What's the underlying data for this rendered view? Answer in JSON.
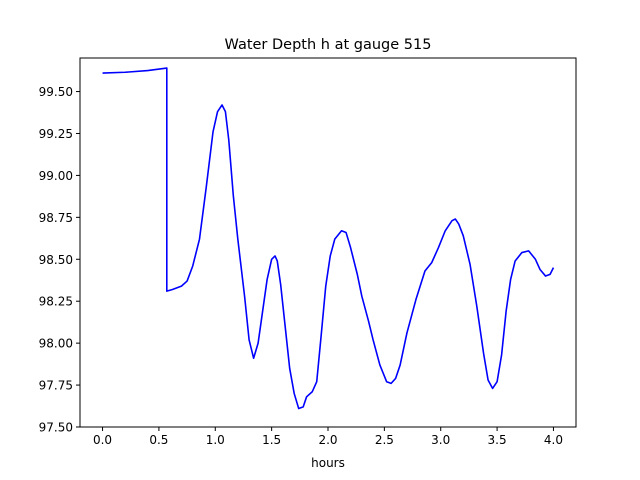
{
  "chart_data": {
    "type": "line",
    "title": "Water Depth h at gauge 515",
    "xlabel": "hours",
    "ylabel": "",
    "xlim": [
      -0.2,
      4.2
    ],
    "ylim": [
      97.5,
      99.7
    ],
    "grid": false,
    "xticks": [
      0.0,
      0.5,
      1.0,
      1.5,
      2.0,
      2.5,
      3.0,
      3.5,
      4.0
    ],
    "xtick_labels": [
      "0.0",
      "0.5",
      "1.0",
      "1.5",
      "2.0",
      "2.5",
      "3.0",
      "3.5",
      "4.0"
    ],
    "yticks": [
      97.5,
      97.75,
      98.0,
      98.25,
      98.5,
      98.75,
      99.0,
      99.25,
      99.5
    ],
    "ytick_labels": [
      "97.50",
      "97.75",
      "98.00",
      "98.25",
      "98.50",
      "98.75",
      "99.00",
      "99.25",
      "99.50"
    ],
    "series": [
      {
        "color": "#0000ff",
        "x": [
          0.0,
          0.2,
          0.4,
          0.57,
          0.57,
          0.62,
          0.7,
          0.75,
          0.8,
          0.86,
          0.92,
          0.98,
          1.02,
          1.06,
          1.09,
          1.12,
          1.16,
          1.2,
          1.26,
          1.3,
          1.34,
          1.38,
          1.42,
          1.46,
          1.5,
          1.53,
          1.55,
          1.58,
          1.62,
          1.66,
          1.7,
          1.74,
          1.78,
          1.81,
          1.86,
          1.9,
          1.94,
          1.98,
          2.02,
          2.06,
          2.12,
          2.16,
          2.2,
          2.26,
          2.3,
          2.36,
          2.4,
          2.46,
          2.52,
          2.56,
          2.6,
          2.64,
          2.7,
          2.78,
          2.86,
          2.92,
          2.98,
          3.04,
          3.1,
          3.13,
          3.16,
          3.2,
          3.26,
          3.32,
          3.38,
          3.42,
          3.46,
          3.5,
          3.54,
          3.58,
          3.62,
          3.66,
          3.72,
          3.78,
          3.84,
          3.88,
          3.93,
          3.97,
          4.0
        ],
        "y": [
          99.61,
          99.615,
          99.625,
          99.64,
          98.31,
          98.32,
          98.34,
          98.37,
          98.46,
          98.62,
          98.93,
          99.26,
          99.38,
          99.42,
          99.38,
          99.21,
          98.88,
          98.62,
          98.28,
          98.02,
          97.91,
          98.0,
          98.19,
          98.38,
          98.5,
          98.52,
          98.49,
          98.35,
          98.1,
          97.85,
          97.7,
          97.61,
          97.62,
          97.68,
          97.71,
          97.77,
          98.05,
          98.34,
          98.52,
          98.62,
          98.67,
          98.66,
          98.57,
          98.41,
          98.28,
          98.13,
          98.02,
          97.87,
          97.77,
          97.76,
          97.79,
          97.87,
          98.06,
          98.26,
          98.43,
          98.48,
          98.57,
          98.67,
          98.73,
          98.74,
          98.71,
          98.64,
          98.47,
          98.22,
          97.94,
          97.78,
          97.73,
          97.77,
          97.93,
          98.19,
          98.38,
          98.49,
          98.54,
          98.55,
          98.5,
          98.44,
          98.4,
          98.41,
          98.45
        ]
      }
    ]
  }
}
